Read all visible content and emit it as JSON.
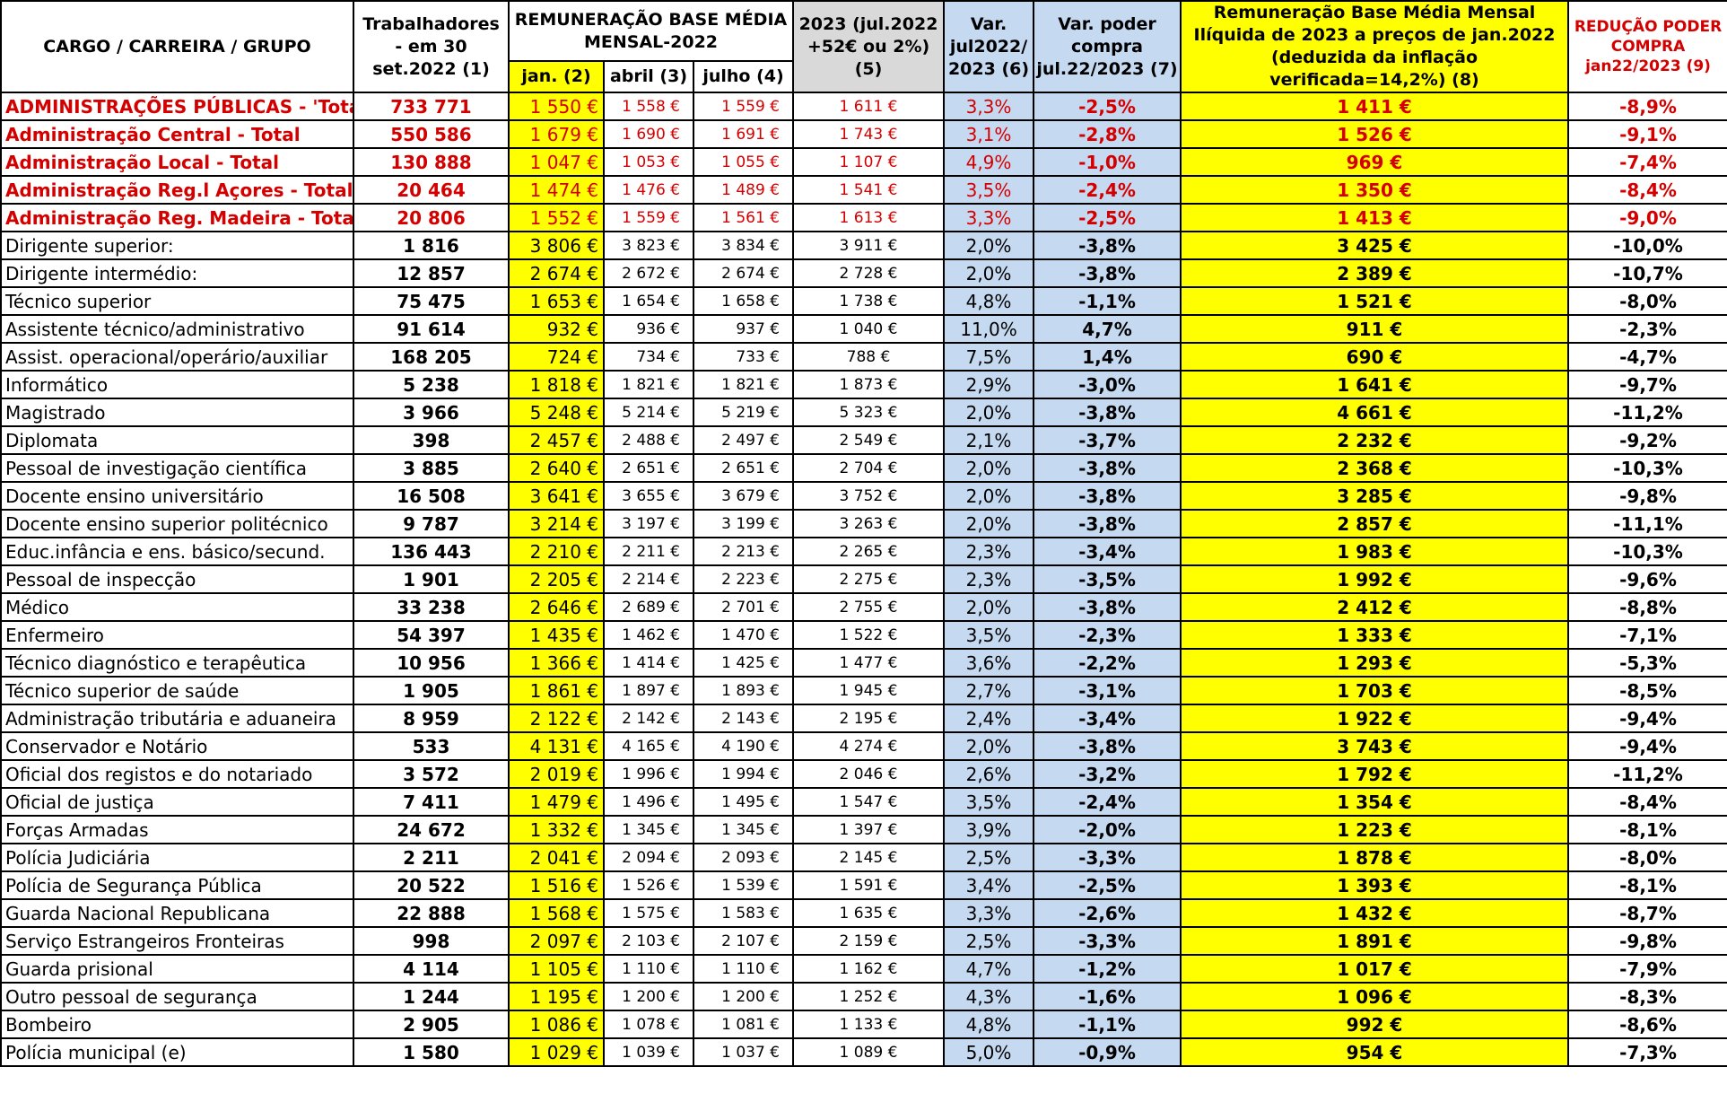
{
  "header": {
    "cargo": "CARGO / CARREIRA / GRUPO",
    "workers": "Trabalhadores - em 30 set.2022 (1)",
    "remun_group": "REMUNERAÇÃO BASE MÉDIA MENSAL-2022",
    "jan": "jan. (2)",
    "abril": "abril (3)",
    "julho": "julho (4)",
    "sim2023": "2023 (jul.2022 +52€ ou 2%) (5)",
    "var": "Var. jul2022/ 2023 (6)",
    "var_poder": "Var. poder compra jul.22/2023 (7)",
    "liquida": "Remuneração Base Média Mensal Ilíquida de 2023 a preços de jan.2022 (deduzida da inflação verificada=14,2%) (8)",
    "reducao": "REDUÇÃO PODER COMPRA jan22/2023 (9)"
  },
  "rows": [
    {
      "name": "ADMINISTRAÇÕES PÚBLICAS - 'Total",
      "total": true,
      "workers": "733 771",
      "jan": "1 550 €",
      "abril": "1 558 €",
      "julho": "1 559 €",
      "sim2023": "1 611 €",
      "var": "3,3%",
      "var_poder": "-2,5%",
      "liquida": "1 411 €",
      "reducao": "-8,9%"
    },
    {
      "name": "Administração Central - Total",
      "total": true,
      "workers": "550 586",
      "jan": "1 679 €",
      "abril": "1 690 €",
      "julho": "1 691 €",
      "sim2023": "1 743 €",
      "var": "3,1%",
      "var_poder": "-2,8%",
      "liquida": "1 526 €",
      "reducao": "-9,1%"
    },
    {
      "name": "Administração  Local - Total",
      "total": true,
      "workers": "130 888",
      "jan": "1 047 €",
      "abril": "1 053 €",
      "julho": "1 055 €",
      "sim2023": "1 107 €",
      "var": "4,9%",
      "var_poder": "-1,0%",
      "liquida": "969 €",
      "reducao": "-7,4%"
    },
    {
      "name": "Administração Reg.l  Açores - Total",
      "total": true,
      "workers": "20 464",
      "jan": "1 474 €",
      "abril": "1 476 €",
      "julho": "1 489 €",
      "sim2023": "1 541 €",
      "var": "3,5%",
      "var_poder": "-2,4%",
      "liquida": "1 350 €",
      "reducao": "-8,4%"
    },
    {
      "name": "Administração Reg. Madeira - Total",
      "total": true,
      "workers": "20 806",
      "jan": "1 552 €",
      "abril": "1 559 €",
      "julho": "1 561 €",
      "sim2023": "1 613 €",
      "var": "3,3%",
      "var_poder": "-2,5%",
      "liquida": "1 413 €",
      "reducao": "-9,0%"
    },
    {
      "name": "Dirigente superior:",
      "total": false,
      "workers": "1 816",
      "jan": "3 806 €",
      "abril": "3 823 €",
      "julho": "3 834 €",
      "sim2023": "3 911 €",
      "var": "2,0%",
      "var_poder": "-3,8%",
      "liquida": "3 425 €",
      "reducao": "-10,0%"
    },
    {
      "name": "Dirigente intermédio:",
      "total": false,
      "workers": "12 857",
      "jan": "2 674 €",
      "abril": "2 672 €",
      "julho": "2 674 €",
      "sim2023": "2 728 €",
      "var": "2,0%",
      "var_poder": "-3,8%",
      "liquida": "2 389 €",
      "reducao": "-10,7%"
    },
    {
      "name": "Técnico superior",
      "total": false,
      "workers": "75 475",
      "jan": "1 653 €",
      "abril": "1 654 €",
      "julho": "1 658 €",
      "sim2023": "1 738 €",
      "var": "4,8%",
      "var_poder": "-1,1%",
      "liquida": "1 521 €",
      "reducao": "-8,0%"
    },
    {
      "name": "Assistente técnico/administrativo",
      "total": false,
      "workers": "91 614",
      "jan": "932 €",
      "abril": "936 €",
      "julho": "937 €",
      "sim2023": "1 040 €",
      "var": "11,0%",
      "var_poder": "4,7%",
      "liquida": "911 €",
      "reducao": "-2,3%"
    },
    {
      "name": "Assist. operacional/operário/auxiliar",
      "total": false,
      "workers": "168 205",
      "jan": "724 €",
      "abril": "734 €",
      "julho": "733 €",
      "sim2023": "788 €",
      "var": "7,5%",
      "var_poder": "1,4%",
      "liquida": "690 €",
      "reducao": "-4,7%"
    },
    {
      "name": "Informático",
      "total": false,
      "workers": "5 238",
      "jan": "1 818 €",
      "abril": "1 821 €",
      "julho": "1 821 €",
      "sim2023": "1 873 €",
      "var": "2,9%",
      "var_poder": "-3,0%",
      "liquida": "1 641 €",
      "reducao": "-9,7%"
    },
    {
      "name": "Magistrado",
      "total": false,
      "workers": "3 966",
      "jan": "5 248 €",
      "abril": "5 214 €",
      "julho": "5 219 €",
      "sim2023": "5 323 €",
      "var": "2,0%",
      "var_poder": "-3,8%",
      "liquida": "4 661 €",
      "reducao": "-11,2%"
    },
    {
      "name": "Diplomata",
      "total": false,
      "workers": "398",
      "jan": "2 457 €",
      "abril": "2 488 €",
      "julho": "2 497 €",
      "sim2023": "2 549 €",
      "var": "2,1%",
      "var_poder": "-3,7%",
      "liquida": "2 232 €",
      "reducao": "-9,2%"
    },
    {
      "name": "Pessoal de investigação científica",
      "total": false,
      "workers": "3 885",
      "jan": "2 640 €",
      "abril": "2 651 €",
      "julho": "2 651 €",
      "sim2023": "2 704 €",
      "var": "2,0%",
      "var_poder": "-3,8%",
      "liquida": "2 368 €",
      "reducao": "-10,3%"
    },
    {
      "name": "Docente ensino universitário",
      "total": false,
      "workers": "16 508",
      "jan": "3 641 €",
      "abril": "3 655 €",
      "julho": "3 679 €",
      "sim2023": "3 752 €",
      "var": "2,0%",
      "var_poder": "-3,8%",
      "liquida": "3 285 €",
      "reducao": "-9,8%"
    },
    {
      "name": "Docente ensino superior politécnico",
      "total": false,
      "workers": "9 787",
      "jan": "3 214 €",
      "abril": "3 197 €",
      "julho": "3 199 €",
      "sim2023": "3 263 €",
      "var": "2,0%",
      "var_poder": "-3,8%",
      "liquida": "2 857 €",
      "reducao": "-11,1%"
    },
    {
      "name": "Educ.infância e ens. básico/secund.",
      "total": false,
      "workers": "136 443",
      "jan": "2 210 €",
      "abril": "2 211 €",
      "julho": "2 213 €",
      "sim2023": "2 265 €",
      "var": "2,3%",
      "var_poder": "-3,4%",
      "liquida": "1 983 €",
      "reducao": "-10,3%"
    },
    {
      "name": "Pessoal de inspecção",
      "total": false,
      "workers": "1 901",
      "jan": "2 205 €",
      "abril": "2 214 €",
      "julho": "2 223 €",
      "sim2023": "2 275 €",
      "var": "2,3%",
      "var_poder": "-3,5%",
      "liquida": "1 992 €",
      "reducao": "-9,6%"
    },
    {
      "name": "Médico",
      "total": false,
      "workers": "33 238",
      "jan": "2 646 €",
      "abril": "2 689 €",
      "julho": "2 701 €",
      "sim2023": "2 755 €",
      "var": "2,0%",
      "var_poder": "-3,8%",
      "liquida": "2 412 €",
      "reducao": "-8,8%"
    },
    {
      "name": "Enfermeiro",
      "total": false,
      "workers": "54 397",
      "jan": "1 435 €",
      "abril": "1 462 €",
      "julho": "1 470 €",
      "sim2023": "1 522 €",
      "var": "3,5%",
      "var_poder": "-2,3%",
      "liquida": "1 333 €",
      "reducao": "-7,1%"
    },
    {
      "name": "Técnico diagnóstico e terapêutica",
      "total": false,
      "workers": "10 956",
      "jan": "1 366 €",
      "abril": "1 414 €",
      "julho": "1 425 €",
      "sim2023": "1 477 €",
      "var": "3,6%",
      "var_poder": "-2,2%",
      "liquida": "1 293 €",
      "reducao": "-5,3%"
    },
    {
      "name": "Técnico superior de saúde",
      "total": false,
      "workers": "1 905",
      "jan": "1 861 €",
      "abril": "1 897 €",
      "julho": "1 893 €",
      "sim2023": "1 945 €",
      "var": "2,7%",
      "var_poder": "-3,1%",
      "liquida": "1 703 €",
      "reducao": "-8,5%"
    },
    {
      "name": "Administração tributária e aduaneira",
      "total": false,
      "workers": "8 959",
      "jan": "2 122 €",
      "abril": "2 142 €",
      "julho": "2 143 €",
      "sim2023": "2 195 €",
      "var": "2,4%",
      "var_poder": "-3,4%",
      "liquida": "1 922 €",
      "reducao": "-9,4%"
    },
    {
      "name": "Conservador e Notário",
      "total": false,
      "workers": "533",
      "jan": "4 131 €",
      "abril": "4 165 €",
      "julho": "4 190 €",
      "sim2023": "4 274 €",
      "var": "2,0%",
      "var_poder": "-3,8%",
      "liquida": "3 743 €",
      "reducao": "-9,4%"
    },
    {
      "name": "Oficial dos registos e do notariado",
      "total": false,
      "workers": "3 572",
      "jan": "2 019 €",
      "abril": "1 996 €",
      "julho": "1 994 €",
      "sim2023": "2 046 €",
      "var": "2,6%",
      "var_poder": "-3,2%",
      "liquida": "1 792 €",
      "reducao": "-11,2%"
    },
    {
      "name": "Oficial de justiça",
      "total": false,
      "workers": "7 411",
      "jan": "1 479 €",
      "abril": "1 496 €",
      "julho": "1 495 €",
      "sim2023": "1 547 €",
      "var": "3,5%",
      "var_poder": "-2,4%",
      "liquida": "1 354 €",
      "reducao": "-8,4%"
    },
    {
      "name": "Forças Armadas",
      "total": false,
      "workers": "24 672",
      "jan": "1 332 €",
      "abril": "1 345 €",
      "julho": "1 345 €",
      "sim2023": "1 397 €",
      "var": "3,9%",
      "var_poder": "-2,0%",
      "liquida": "1 223 €",
      "reducao": "-8,1%"
    },
    {
      "name": "Polícia Judiciária",
      "total": false,
      "workers": "2 211",
      "jan": "2 041 €",
      "abril": "2 094 €",
      "julho": "2 093 €",
      "sim2023": "2 145 €",
      "var": "2,5%",
      "var_poder": "-3,3%",
      "liquida": "1 878 €",
      "reducao": "-8,0%"
    },
    {
      "name": "Polícia de Segurança Pública",
      "total": false,
      "workers": "20 522",
      "jan": "1 516 €",
      "abril": "1 526 €",
      "julho": "1 539 €",
      "sim2023": "1 591 €",
      "var": "3,4%",
      "var_poder": "-2,5%",
      "liquida": "1 393 €",
      "reducao": "-8,1%"
    },
    {
      "name": "Guarda Nacional Republicana",
      "total": false,
      "workers": "22 888",
      "jan": "1 568 €",
      "abril": "1 575 €",
      "julho": "1 583 €",
      "sim2023": "1 635 €",
      "var": "3,3%",
      "var_poder": "-2,6%",
      "liquida": "1 432 €",
      "reducao": "-8,7%"
    },
    {
      "name": "Serviço Estrangeiros Fronteiras",
      "total": false,
      "workers": "998",
      "jan": "2 097 €",
      "abril": "2 103 €",
      "julho": "2 107 €",
      "sim2023": "2 159 €",
      "var": "2,5%",
      "var_poder": "-3,3%",
      "liquida": "1 891 €",
      "reducao": "-9,8%"
    },
    {
      "name": "Guarda prisional",
      "total": false,
      "workers": "4 114",
      "jan": "1 105 €",
      "abril": "1 110 €",
      "julho": "1 110 €",
      "sim2023": "1 162 €",
      "var": "4,7%",
      "var_poder": "-1,2%",
      "liquida": "1 017 €",
      "reducao": "-7,9%"
    },
    {
      "name": "Outro pessoal de segurança",
      "total": false,
      "workers": "1 244",
      "jan": "1 195 €",
      "abril": "1 200 €",
      "julho": "1 200 €",
      "sim2023": "1 252 €",
      "var": "4,3%",
      "var_poder": "-1,6%",
      "liquida": "1 096 €",
      "reducao": "-8,3%"
    },
    {
      "name": "Bombeiro",
      "total": false,
      "workers": "2 905",
      "jan": "1 086 €",
      "abril": "1 078 €",
      "julho": "1 081 €",
      "sim2023": "1 133 €",
      "var": "4,8%",
      "var_poder": "-1,1%",
      "liquida": "992 €",
      "reducao": "-8,6%"
    },
    {
      "name": "Polícia municipal (e)",
      "total": false,
      "workers": "1 580",
      "jan": "1 029 €",
      "abril": "1 039 €",
      "julho": "1 037 €",
      "sim2023": "1 089 €",
      "var": "5,0%",
      "var_poder": "-0,9%",
      "liquida": "954 €",
      "reducao": "-7,3%"
    }
  ]
}
